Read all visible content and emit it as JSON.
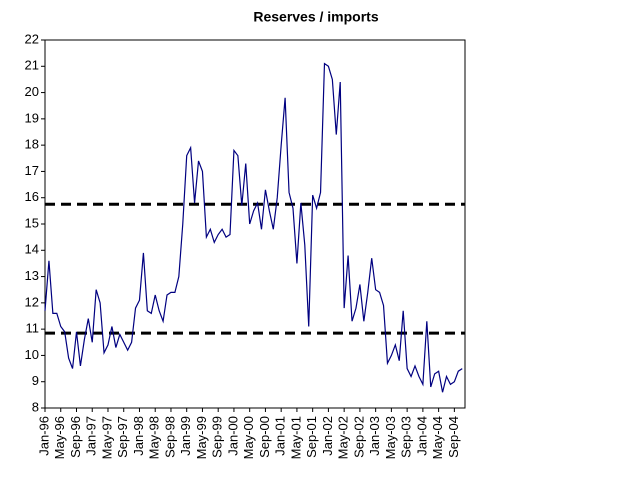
{
  "chart_data": {
    "type": "line",
    "title": "Reserves / imports",
    "categories": [
      "Jan-96",
      null,
      null,
      null,
      "May-96",
      null,
      null,
      null,
      "Sep-96",
      null,
      null,
      null,
      "Jan-97",
      null,
      null,
      null,
      "May-97",
      null,
      null,
      null,
      "Sep-97",
      null,
      null,
      null,
      "Jan-98",
      null,
      null,
      null,
      "May-98",
      null,
      null,
      null,
      "Sep-98",
      null,
      null,
      null,
      "Jan-99",
      null,
      null,
      null,
      "May-99",
      null,
      null,
      null,
      "Sep-99",
      null,
      null,
      null,
      "Jan-00",
      null,
      null,
      null,
      "May-00",
      null,
      null,
      null,
      "Sep-00",
      null,
      null,
      null,
      "Jan-01",
      null,
      null,
      null,
      "May-01",
      null,
      null,
      null,
      "Sep-01",
      null,
      null,
      null,
      "Jan-02",
      null,
      null,
      null,
      "May-02",
      null,
      null,
      null,
      "Sep-02",
      null,
      null,
      null,
      "Jan-03",
      null,
      null,
      null,
      "May-03",
      null,
      null,
      null,
      "Sep-03",
      null,
      null,
      null,
      "Jan-04",
      null,
      null,
      null,
      "May-04",
      null,
      null,
      null,
      "Sep-04",
      null,
      null
    ],
    "values": [
      11.7,
      13.6,
      11.6,
      11.6,
      11.1,
      10.9,
      9.9,
      9.5,
      10.9,
      9.6,
      10.6,
      11.4,
      10.5,
      12.5,
      12.0,
      10.1,
      10.4,
      11.1,
      10.3,
      10.8,
      10.5,
      10.2,
      10.5,
      11.8,
      12.1,
      13.9,
      11.7,
      11.6,
      12.3,
      11.7,
      11.3,
      12.3,
      12.4,
      12.4,
      13.0,
      15.0,
      17.6,
      17.9,
      15.8,
      17.4,
      17.0,
      14.5,
      14.8,
      14.3,
      14.6,
      14.8,
      14.5,
      14.6,
      17.8,
      17.6,
      15.7,
      17.3,
      15.0,
      15.5,
      15.8,
      14.8,
      16.3,
      15.5,
      14.8,
      16.0,
      18.0,
      19.8,
      16.2,
      15.6,
      13.5,
      15.8,
      14.2,
      11.1,
      16.1,
      15.6,
      16.2,
      21.1,
      21.0,
      20.5,
      18.4,
      20.4,
      11.8,
      13.8,
      11.3,
      11.8,
      12.7,
      11.3,
      12.4,
      13.7,
      12.5,
      12.4,
      11.9,
      9.7,
      10.0,
      10.4,
      9.8,
      11.7,
      9.5,
      9.2,
      9.6,
      9.2,
      8.9,
      11.3,
      8.8,
      9.3,
      9.4,
      8.6,
      9.2,
      8.9,
      9.0,
      9.4,
      9.5
    ],
    "color": "#000080",
    "ylim": [
      8,
      22
    ],
    "yticks": [
      8,
      9,
      10,
      11,
      12,
      13,
      14,
      15,
      16,
      17,
      18,
      19,
      20,
      21,
      22
    ],
    "reference_lines": [
      15.75,
      10.85
    ],
    "reference_color": "#000000",
    "grid": false
  }
}
